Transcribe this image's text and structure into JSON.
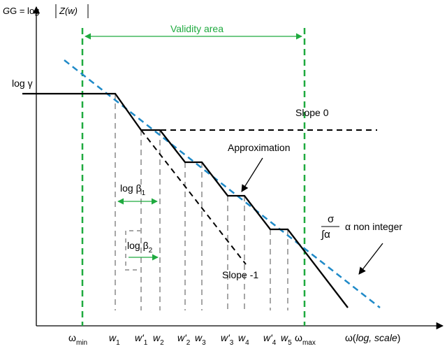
{
  "axes": {
    "y_label_prefix": "G = log",
    "y_label_fn": "Z(w)",
    "x_label_omega": "ω(",
    "x_label_scale": "log, scale",
    "x_label_close": ")"
  },
  "validity_label": "Validity area",
  "log_gamma": "log γ",
  "slope0": "Slope 0",
  "approximation": "Approximation",
  "slope_minus1": "Slope -1",
  "beta1": {
    "prefix": "log β",
    "sub": "1"
  },
  "beta2": {
    "prefix": "log β",
    "sub": "2"
  },
  "fraction": {
    "num": "σ",
    "den": "∫α",
    "suffix": "α non integer"
  },
  "ticks": {
    "wmin": {
      "main": "ω",
      "sub": "min"
    },
    "w1": {
      "main": "w",
      "sub": "1"
    },
    "wp1": {
      "main": "w'",
      "sub": "1"
    },
    "w2": {
      "main": "w",
      "sub": "2"
    },
    "wp2": {
      "main": "w'",
      "sub": "2"
    },
    "w3": {
      "main": "w",
      "sub": "3"
    },
    "wp3": {
      "main": "w'",
      "sub": "3"
    },
    "w4": {
      "main": "w",
      "sub": "4"
    },
    "wp4": {
      "main": "w'",
      "sub": "4"
    },
    "w5": {
      "main": "w",
      "sub": "5"
    },
    "wmax": {
      "main": "ω",
      "sub": "max"
    }
  },
  "colors": {
    "green": "#1faa3f",
    "blue": "#1f8ac8",
    "gray": "#a6a6a6",
    "black": "#000000"
  }
}
